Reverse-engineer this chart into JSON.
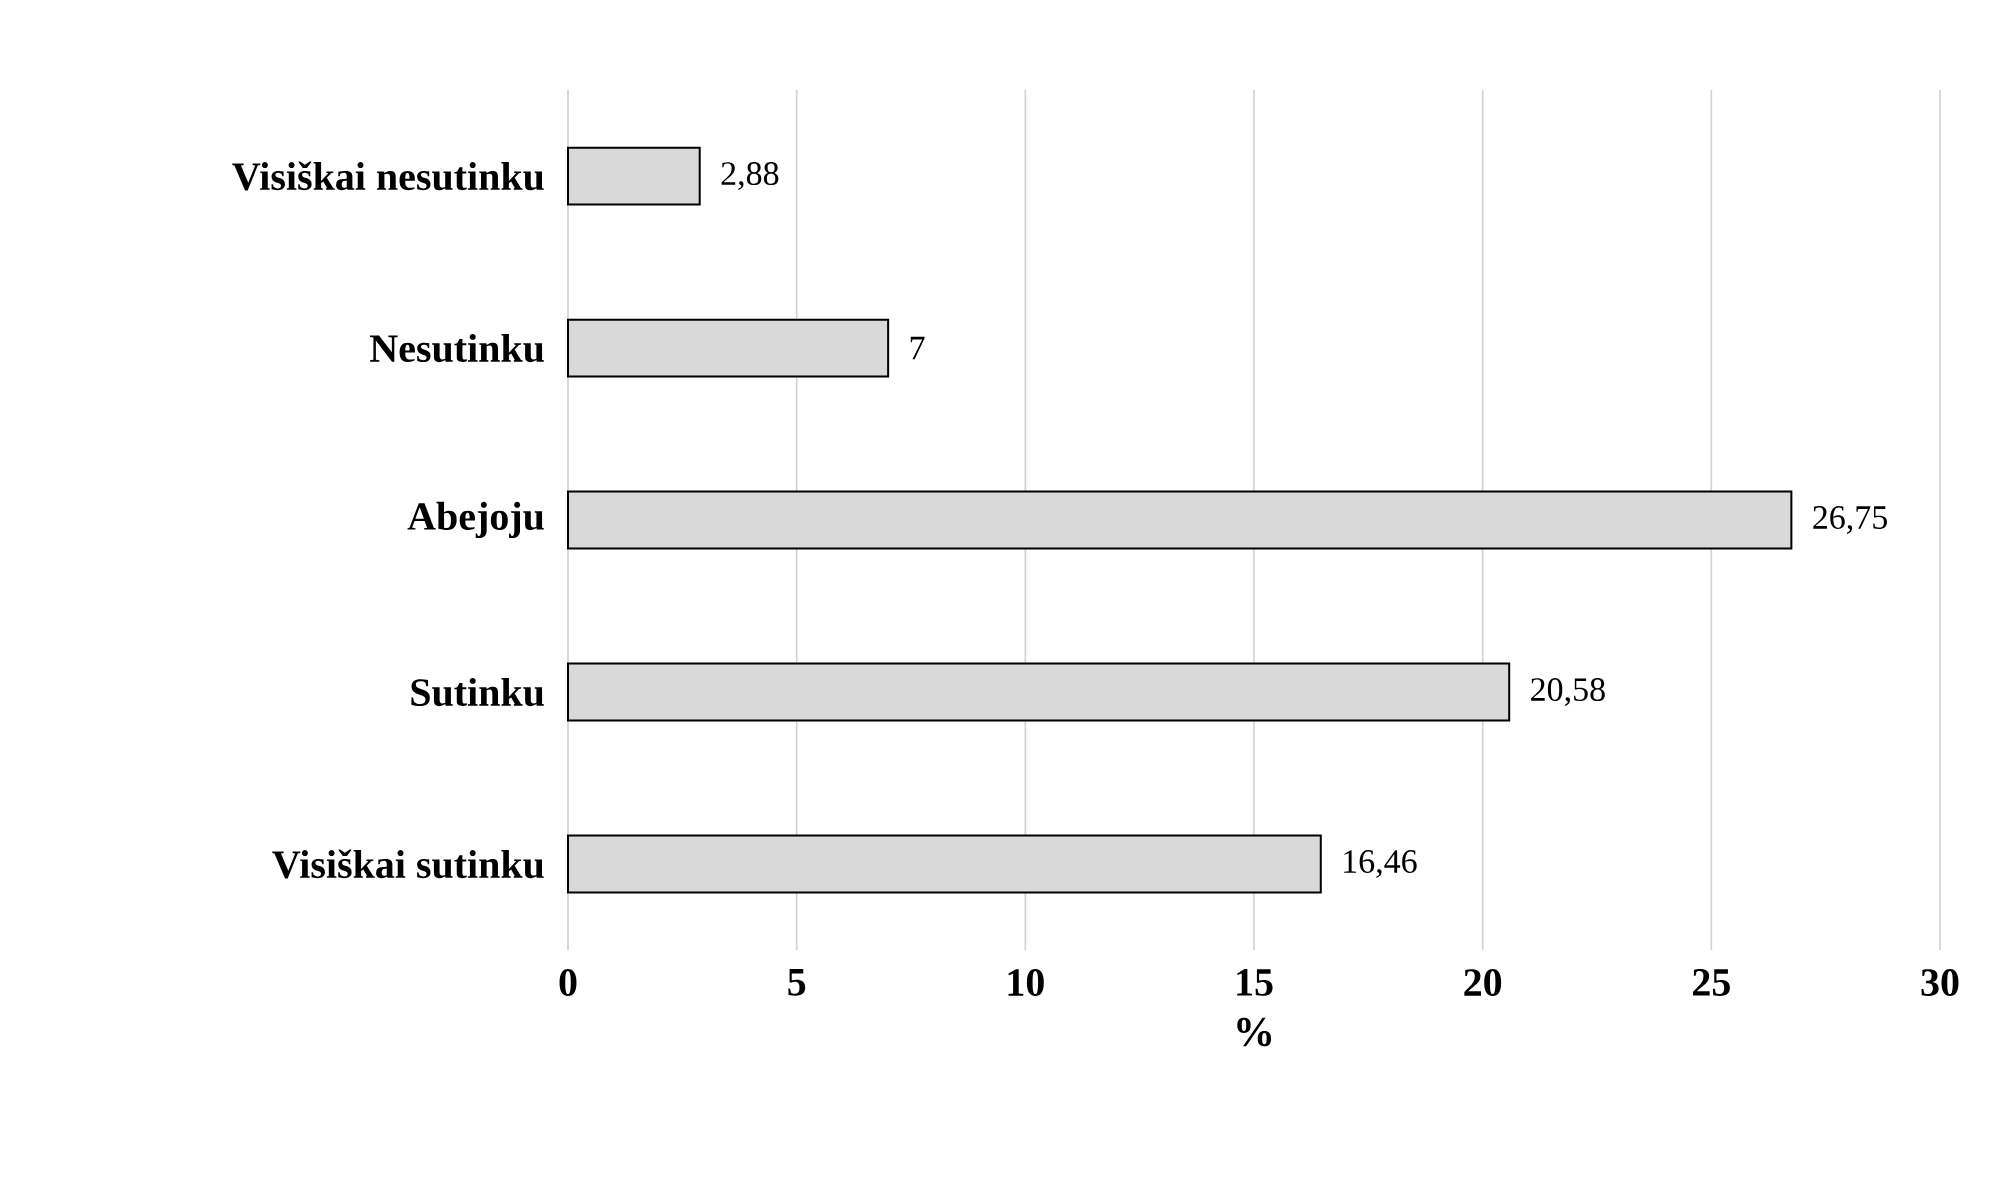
{
  "chart_data": {
    "type": "bar",
    "orientation": "horizontal",
    "xlabel": "%",
    "categories": [
      "Visiškai nesutinku",
      "Nesutinku",
      "Abejoju",
      "Sutinku",
      "Visiškai sutinku"
    ],
    "values": [
      2.88,
      7,
      26.75,
      20.58,
      16.46
    ],
    "value_labels": [
      "2,88",
      "7",
      "26,75",
      "20,58",
      "16,46"
    ],
    "color": "#d9d9d9",
    "xlim": [
      0,
      30
    ],
    "xticks": [
      0,
      5,
      10,
      15,
      20,
      25,
      30
    ],
    "grid": "x"
  }
}
